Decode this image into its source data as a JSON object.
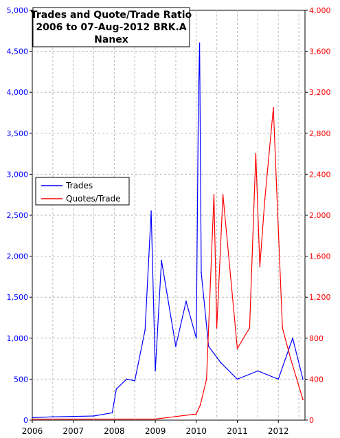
{
  "chart_data": {
    "type": "line",
    "title": [
      "Trades and Quote/Trade Ratio",
      "2006 to 07-Aug-2012 BRK.A",
      "Nanex"
    ],
    "colors": {
      "trades": "#0000ff",
      "ratio": "#ff0000"
    },
    "y_left": {
      "ylim": [
        0,
        5000
      ],
      "ticks": [
        0,
        500,
        1000,
        1500,
        2000,
        2500,
        3000,
        3500,
        4000,
        4500,
        5000
      ],
      "tick_labels": [
        "0",
        "500",
        "1,000",
        "1,500",
        "2,000",
        "2,500",
        "3,000",
        "3,500",
        "4,000",
        "4,500",
        "5,000"
      ]
    },
    "y_right": {
      "ylim": [
        0,
        4000
      ],
      "ticks": [
        0,
        400,
        800,
        1200,
        1600,
        2000,
        2400,
        2800,
        3200,
        3600,
        4000
      ],
      "tick_labels": [
        "0",
        "400",
        "800",
        "1,200",
        "1,600",
        "2,000",
        "2,400",
        "2,800",
        "3,200",
        "3,600",
        "4,000"
      ]
    },
    "x_axis": {
      "xlim": [
        2006.0,
        2012.65
      ],
      "ticks": [
        2006,
        2007,
        2008,
        2009,
        2010,
        2011,
        2012
      ],
      "tick_labels": [
        "2006",
        "2007",
        "2008",
        "2009",
        "2010",
        "2011",
        "2012"
      ]
    },
    "grid": true,
    "legend": {
      "placement": "left",
      "entries": [
        "Trades",
        "Quotes/Trade"
      ]
    },
    "series": [
      {
        "name": "Trades",
        "axis": "left",
        "points": [
          [
            2006.0,
            30
          ],
          [
            2006.5,
            40
          ],
          [
            2007.0,
            45
          ],
          [
            2007.5,
            50
          ],
          [
            2007.95,
            90
          ],
          [
            2008.05,
            380
          ],
          [
            2008.3,
            500
          ],
          [
            2008.5,
            480
          ],
          [
            2008.75,
            1100
          ],
          [
            2008.9,
            2550
          ],
          [
            2009.0,
            600
          ],
          [
            2009.15,
            1950
          ],
          [
            2009.5,
            900
          ],
          [
            2009.75,
            1450
          ],
          [
            2010.0,
            1000
          ],
          [
            2010.05,
            3850
          ],
          [
            2010.08,
            4600
          ],
          [
            2010.12,
            1800
          ],
          [
            2010.3,
            900
          ],
          [
            2010.6,
            700
          ],
          [
            2011.0,
            500
          ],
          [
            2011.5,
            600
          ],
          [
            2012.0,
            500
          ],
          [
            2012.35,
            1000
          ],
          [
            2012.6,
            500
          ]
        ]
      },
      {
        "name": "Quotes/Trade",
        "axis": "right",
        "points": [
          [
            2006.0,
            10
          ],
          [
            2007.0,
            10
          ],
          [
            2008.0,
            10
          ],
          [
            2009.0,
            10
          ],
          [
            2010.0,
            60
          ],
          [
            2010.1,
            150
          ],
          [
            2010.25,
            400
          ],
          [
            2010.43,
            2200
          ],
          [
            2010.5,
            900
          ],
          [
            2010.65,
            2200
          ],
          [
            2011.0,
            700
          ],
          [
            2011.3,
            900
          ],
          [
            2011.45,
            2600
          ],
          [
            2011.55,
            1500
          ],
          [
            2011.67,
            2150
          ],
          [
            2011.88,
            3050
          ],
          [
            2011.95,
            2350
          ],
          [
            2012.1,
            900
          ],
          [
            2012.3,
            600
          ],
          [
            2012.6,
            200
          ]
        ]
      }
    ]
  }
}
